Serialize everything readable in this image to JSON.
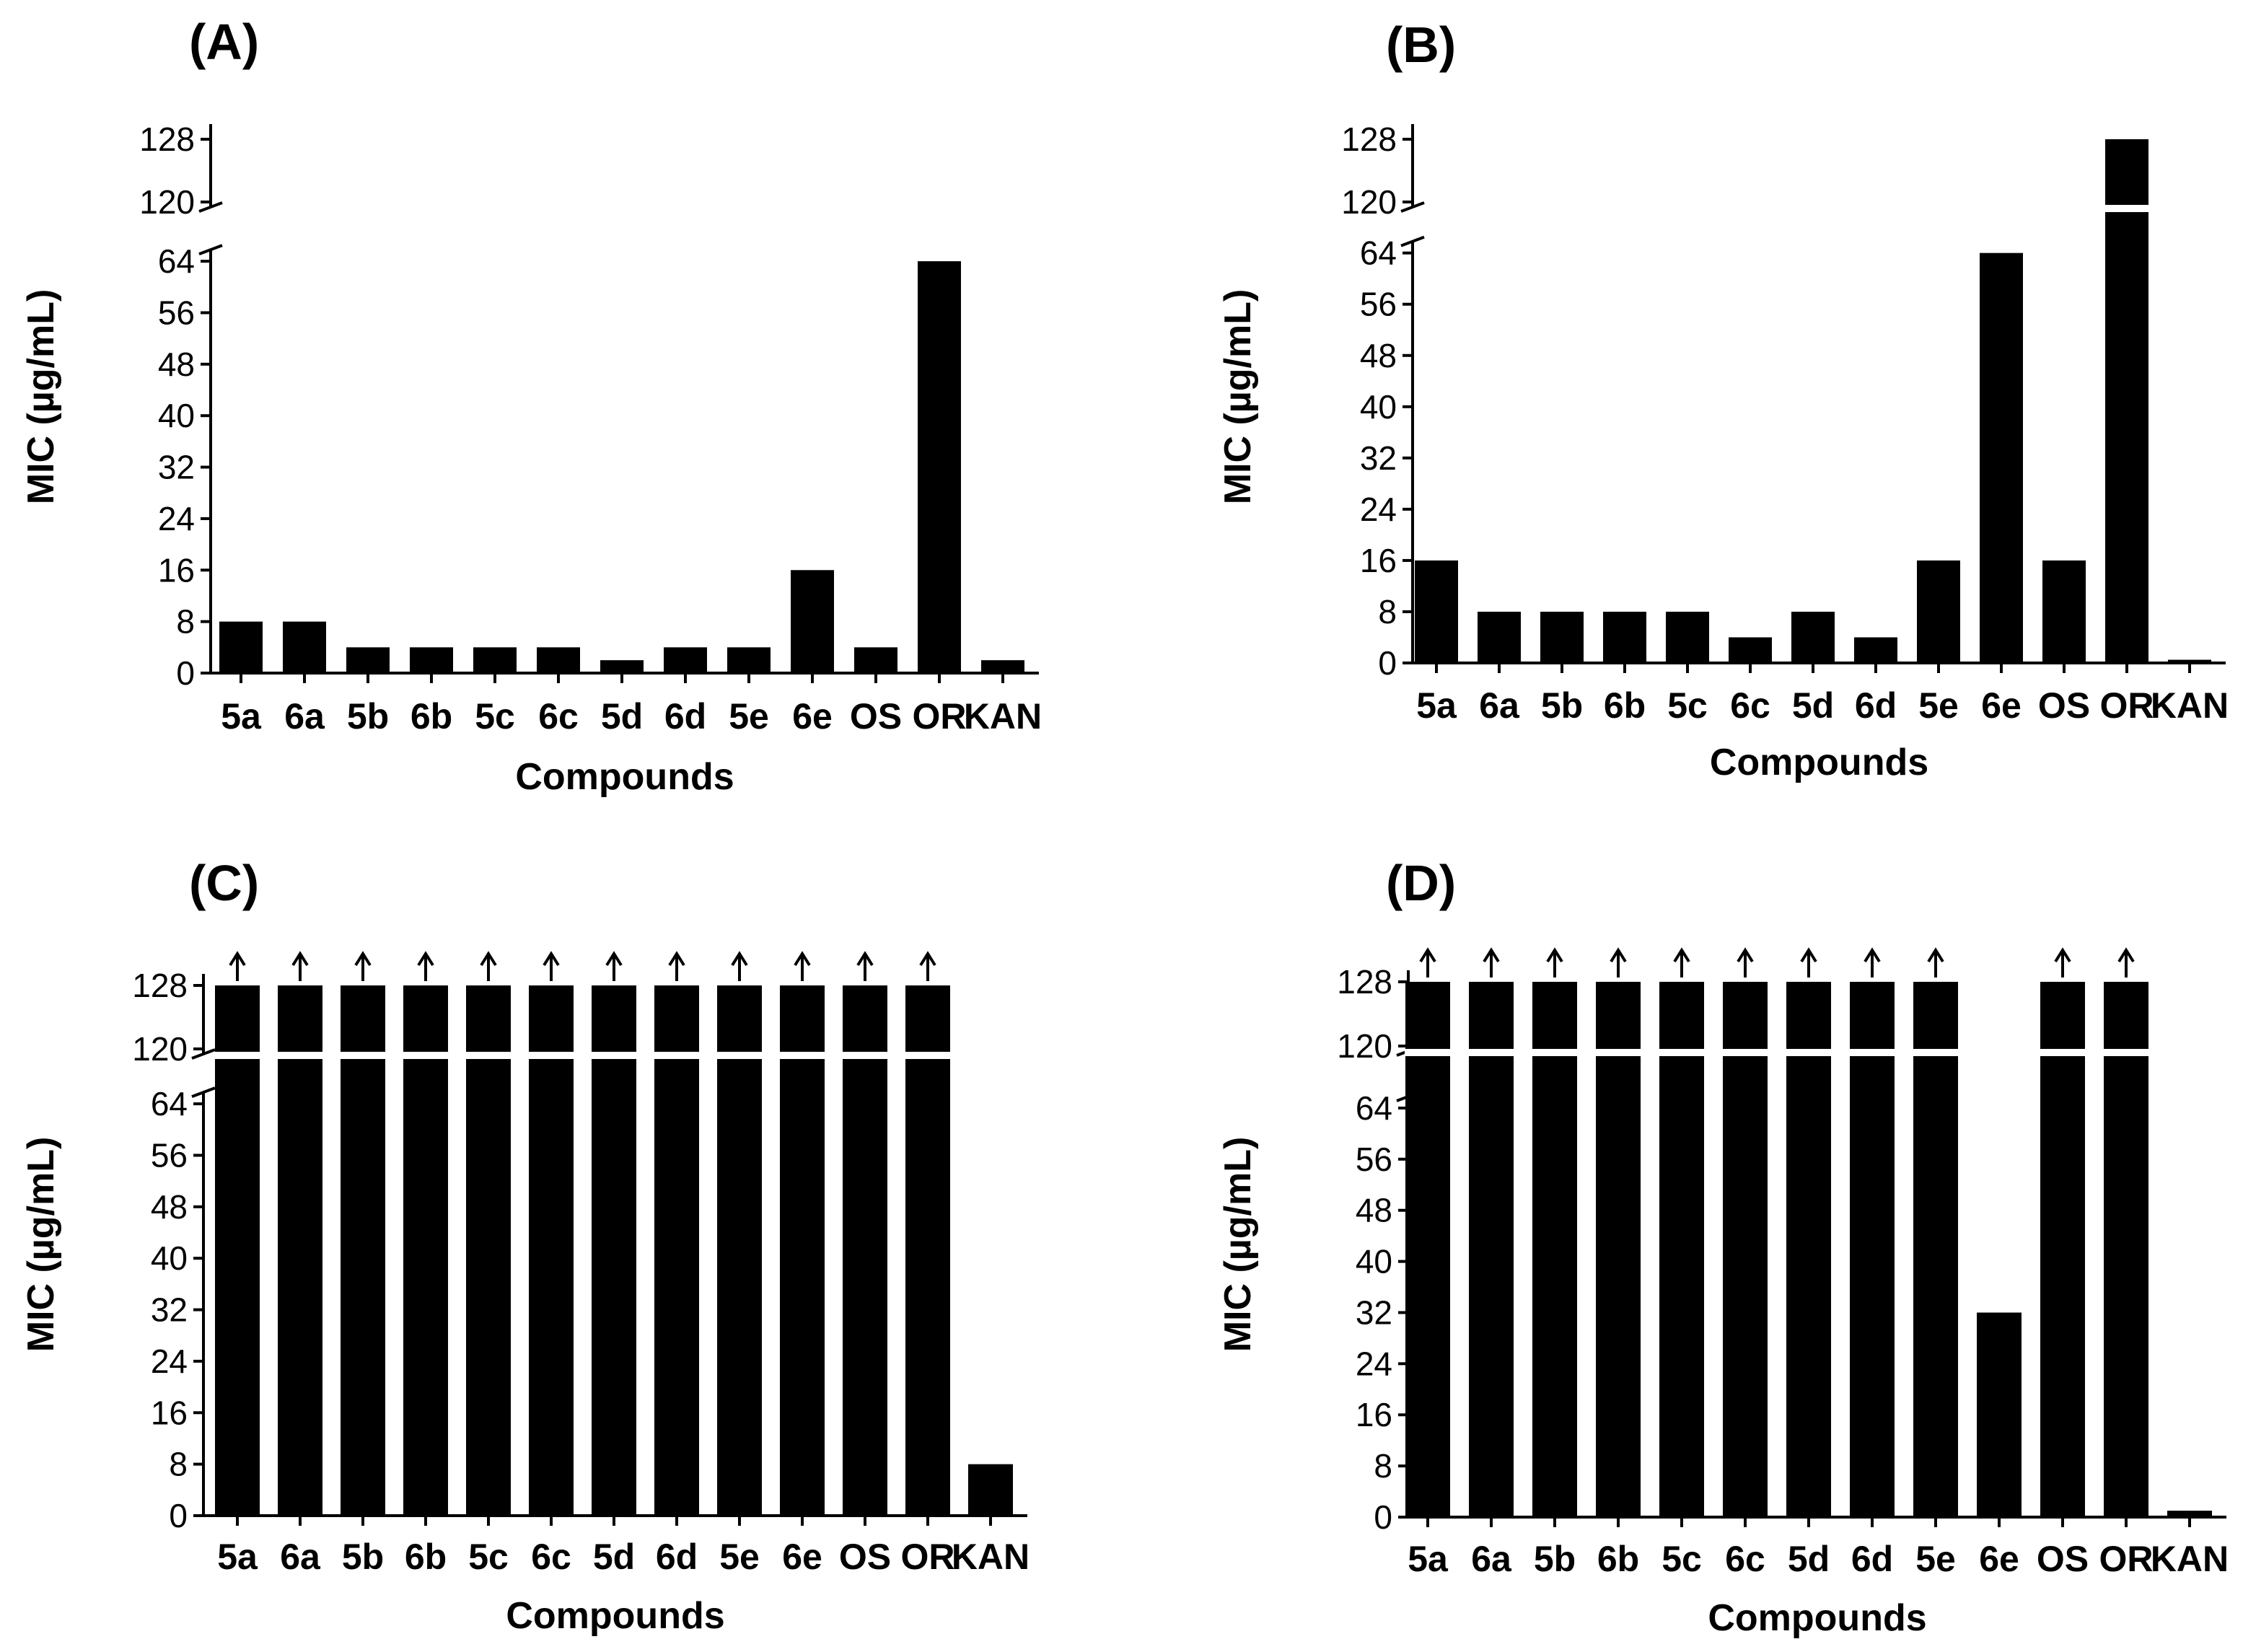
{
  "figure": {
    "colors": {
      "bar": "#000000",
      "background": "#ffffff"
    }
  },
  "chart_data": [
    {
      "panel_label": "(A)",
      "type": "bar",
      "categories": [
        "5a",
        "6a",
        "5b",
        "6b",
        "5c",
        "6c",
        "5d",
        "6d",
        "5e",
        "6e",
        "OS",
        "OR",
        "KAN"
      ],
      "values": [
        8,
        8,
        4,
        4,
        4,
        4,
        2,
        4,
        4,
        16,
        4,
        64,
        2
      ],
      "exceeds_range": [
        false,
        false,
        false,
        false,
        false,
        false,
        false,
        false,
        false,
        false,
        false,
        false,
        false
      ],
      "xlabel": "Compounds",
      "ylabel": "MIC (µg/mL)",
      "yticks_lower": [
        0,
        8,
        16,
        24,
        32,
        40,
        48,
        56,
        64
      ],
      "yticks_upper": [
        120,
        128
      ],
      "axis_break": [
        64,
        120
      ]
    },
    {
      "panel_label": "(B)",
      "type": "bar",
      "categories": [
        "5a",
        "6a",
        "5b",
        "6b",
        "5c",
        "6c",
        "5d",
        "6d",
        "5e",
        "6e",
        "OS",
        "OR",
        "KAN"
      ],
      "values": [
        16,
        8,
        8,
        8,
        8,
        4,
        8,
        4,
        16,
        64,
        16,
        128,
        0.5
      ],
      "exceeds_range": [
        false,
        false,
        false,
        false,
        false,
        false,
        false,
        false,
        false,
        false,
        false,
        false,
        false
      ],
      "xlabel": "Compounds",
      "ylabel": "MIC (µg/mL)",
      "yticks_lower": [
        0,
        8,
        16,
        24,
        32,
        40,
        48,
        56,
        64
      ],
      "yticks_upper": [
        120,
        128
      ],
      "axis_break": [
        64,
        120
      ]
    },
    {
      "panel_label": "(C)",
      "type": "bar",
      "categories": [
        "5a",
        "6a",
        "5b",
        "6b",
        "5c",
        "6c",
        "5d",
        "6d",
        "5e",
        "6e",
        "OS",
        "OR",
        "KAN"
      ],
      "values": [
        128,
        128,
        128,
        128,
        128,
        128,
        128,
        128,
        128,
        128,
        128,
        128,
        8
      ],
      "exceeds_range": [
        true,
        true,
        true,
        true,
        true,
        true,
        true,
        true,
        true,
        true,
        true,
        true,
        false
      ],
      "xlabel": "Compounds",
      "ylabel": "MIC (µg/mL)",
      "yticks_lower": [
        0,
        8,
        16,
        24,
        32,
        40,
        48,
        56,
        64
      ],
      "yticks_upper": [
        120,
        128
      ],
      "axis_break": [
        64,
        120
      ]
    },
    {
      "panel_label": "(D)",
      "type": "bar",
      "categories": [
        "5a",
        "6a",
        "5b",
        "6b",
        "5c",
        "6c",
        "5d",
        "6d",
        "5e",
        "6e",
        "OS",
        "OR",
        "KAN"
      ],
      "values": [
        128,
        128,
        128,
        128,
        128,
        128,
        128,
        128,
        128,
        32,
        128,
        128,
        1
      ],
      "exceeds_range": [
        true,
        true,
        true,
        true,
        true,
        true,
        true,
        true,
        true,
        false,
        true,
        true,
        false
      ],
      "xlabel": "Compounds",
      "ylabel": "MIC (µg/mL)",
      "yticks_lower": [
        0,
        8,
        16,
        24,
        32,
        40,
        48,
        56,
        64
      ],
      "yticks_upper": [
        120,
        128
      ],
      "axis_break": [
        64,
        120
      ]
    }
  ]
}
